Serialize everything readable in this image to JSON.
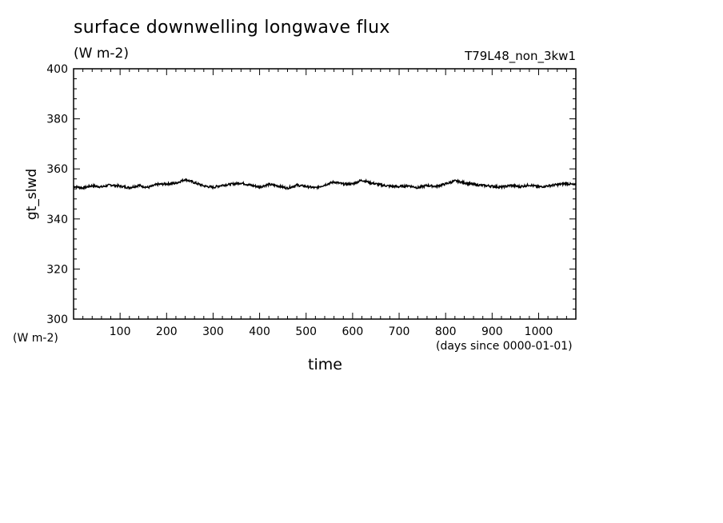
{
  "chart_data": {
    "type": "line",
    "title": "surface downwelling longwave flux",
    "units": "(W m-2)",
    "run_name": "T79L48_non_3kw1",
    "ylabel": "gt_slwd",
    "y_units_label": "(W m-2)",
    "xlabel": "time",
    "x_units_label": "(days since 0000-01-01)",
    "xlim": [
      0,
      1080
    ],
    "ylim": [
      300,
      400
    ],
    "x_ticks": [
      100,
      200,
      300,
      400,
      500,
      600,
      700,
      800,
      900,
      1000
    ],
    "x_tick_labels": [
      "100",
      "200",
      "300",
      "400",
      "500",
      "600",
      "700",
      "800",
      "900",
      "1000"
    ],
    "y_ticks": [
      300,
      320,
      340,
      360,
      380,
      400
    ],
    "y_tick_labels": [
      "300",
      "320",
      "340",
      "360",
      "380",
      "400"
    ],
    "grid": false,
    "series": [
      {
        "x": [
          0,
          20,
          40,
          60,
          80,
          100,
          120,
          140,
          160,
          180,
          200,
          220,
          240,
          260,
          280,
          300,
          320,
          340,
          360,
          380,
          400,
          420,
          440,
          460,
          480,
          500,
          520,
          540,
          560,
          580,
          600,
          620,
          640,
          660,
          680,
          700,
          720,
          740,
          760,
          780,
          800,
          820,
          840,
          860,
          880,
          900,
          920,
          940,
          960,
          980,
          1000,
          1020,
          1040,
          1060,
          1080
        ],
        "values": [
          353.0,
          352.4,
          353.3,
          352.8,
          353.6,
          353.1,
          352.5,
          353.4,
          352.6,
          353.8,
          354.0,
          354.3,
          355.8,
          354.5,
          353.2,
          352.6,
          353.5,
          353.9,
          354.4,
          353.5,
          352.8,
          353.8,
          353.2,
          352.3,
          353.5,
          353.0,
          352.4,
          353.6,
          354.8,
          353.9,
          354.0,
          355.5,
          354.4,
          353.6,
          353.1,
          352.9,
          353.3,
          352.5,
          353.4,
          353.0,
          354.0,
          355.2,
          354.5,
          353.8,
          353.4,
          353.1,
          352.7,
          353.4,
          352.9,
          353.6,
          352.8,
          353.2,
          353.7,
          354.2,
          353.5
        ],
        "color": "#000000"
      }
    ]
  }
}
